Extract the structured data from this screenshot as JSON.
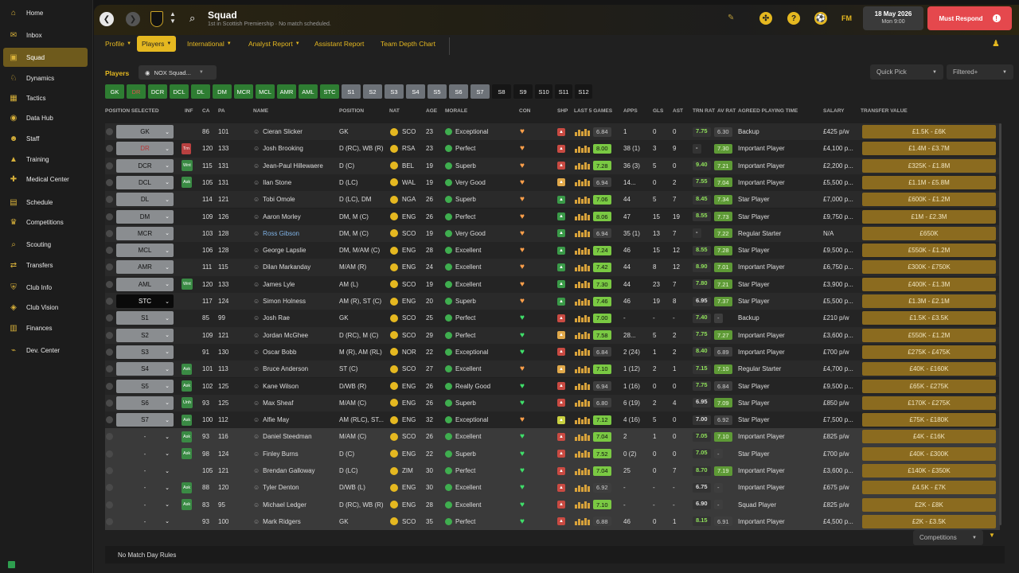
{
  "sidebar": {
    "items": [
      {
        "label": "Home",
        "icon": "home-icon",
        "glyph": "⌂"
      },
      {
        "label": "Inbox",
        "icon": "inbox-icon",
        "glyph": "✉"
      },
      {
        "label": "Squad",
        "icon": "squad-icon",
        "glyph": "▣",
        "active": true
      },
      {
        "label": "Dynamics",
        "icon": "dynamics-icon",
        "glyph": "♘"
      },
      {
        "label": "Tactics",
        "icon": "tactics-icon",
        "glyph": "▦"
      },
      {
        "label": "Data Hub",
        "icon": "data-hub-icon",
        "glyph": "◉"
      },
      {
        "label": "Staff",
        "icon": "staff-icon",
        "glyph": "☻"
      },
      {
        "label": "Training",
        "icon": "training-icon",
        "glyph": "▲"
      },
      {
        "label": "Medical Center",
        "icon": "medical-icon",
        "glyph": "✚"
      },
      {
        "label": "Schedule",
        "icon": "schedule-icon",
        "glyph": "▤"
      },
      {
        "label": "Competitions",
        "icon": "trophy-icon",
        "glyph": "♛"
      },
      {
        "label": "Scouting",
        "icon": "scouting-icon",
        "glyph": "⌕"
      },
      {
        "label": "Transfers",
        "icon": "transfers-icon",
        "glyph": "⇄"
      },
      {
        "label": "Club Info",
        "icon": "club-info-icon",
        "glyph": "⛨"
      },
      {
        "label": "Club Vision",
        "icon": "club-vision-icon",
        "glyph": "◈"
      },
      {
        "label": "Finances",
        "icon": "finances-icon",
        "glyph": "▥"
      },
      {
        "label": "Dev. Center",
        "icon": "dev-center-icon",
        "glyph": "⌁"
      }
    ]
  },
  "header": {
    "title": "Squad",
    "subtitle": "1st in Scottish Premiership · No match scheduled.",
    "date": "18 May 2026",
    "time": "Mon 9:00",
    "fm_label": "FM",
    "must_respond": "Must Respond"
  },
  "tabs": [
    {
      "label": "Profile",
      "caret": true
    },
    {
      "label": "Players",
      "caret": true,
      "active": true
    },
    {
      "label": "International",
      "caret": true
    },
    {
      "label": "Analyst Report",
      "caret": true
    },
    {
      "label": "Assistant Report",
      "caret": false
    },
    {
      "label": "Team Depth Chart",
      "caret": false
    }
  ],
  "players_label": "Players",
  "view_select": "NOX Squad...",
  "quick_pick": "Quick Pick",
  "filtered": "Filtered+",
  "position_filters": [
    {
      "label": "GK",
      "style": "g"
    },
    {
      "label": "DR",
      "style": "g-red"
    },
    {
      "label": "DCR",
      "style": "g"
    },
    {
      "label": "DCL",
      "style": "g"
    },
    {
      "label": "DL",
      "style": "g"
    },
    {
      "label": "DM",
      "style": "g"
    },
    {
      "label": "MCR",
      "style": "g"
    },
    {
      "label": "MCL",
      "style": "g"
    },
    {
      "label": "AMR",
      "style": "g"
    },
    {
      "label": "AML",
      "style": "g"
    },
    {
      "label": "STC",
      "style": "g"
    },
    {
      "label": "S1",
      "style": "gr"
    },
    {
      "label": "S2",
      "style": "gr"
    },
    {
      "label": "S3",
      "style": "gr"
    },
    {
      "label": "S4",
      "style": "gr"
    },
    {
      "label": "S5",
      "style": "gr"
    },
    {
      "label": "S6",
      "style": "gr"
    },
    {
      "label": "S7",
      "style": "gr"
    },
    {
      "label": "S8",
      "style": "dk"
    },
    {
      "label": "S9",
      "style": "dk"
    },
    {
      "label": "S10",
      "style": "dk"
    },
    {
      "label": "S11",
      "style": "dk"
    },
    {
      "label": "S12",
      "style": "dk"
    }
  ],
  "columns": {
    "position_selected": "POSITION SELECTED",
    "inf": "INF",
    "ca": "CA",
    "pa": "PA",
    "name": "NAME",
    "position": "POSITION",
    "nat": "NAT",
    "age": "AGE",
    "morale": "MORALE",
    "con": "CON",
    "shp": "SHP",
    "last5": "LAST 5 GAMES",
    "apps": "APPS",
    "gls": "GLS",
    "ast": "AST",
    "trn_rat": "TRN RAT",
    "av_rat": "AV RAT",
    "agreed": "AGREED PLAYING TIME",
    "salary": "SALARY",
    "transfer_value": "TRANSFER VALUE"
  },
  "players": [
    {
      "sel": "GK",
      "inf": "",
      "ca": "86",
      "pa": "101",
      "name": "Cieran Slicker",
      "pos": "GK",
      "nat": "SCO",
      "age": "23",
      "morale": "Exceptional",
      "l5": "6.84",
      "apps": "1",
      "gls": "0",
      "ast": "0",
      "trn": "7.75",
      "av": "6.30",
      "agreed": "Backup",
      "salary": "£425 p/w",
      "tv": "£1.5K - £6K"
    },
    {
      "sel": "DR",
      "inf": "Trn",
      "ca": "120",
      "pa": "133",
      "name": "Josh Brooking",
      "pos": "D (RC), WB (R)",
      "nat": "RSA",
      "age": "23",
      "morale": "Perfect",
      "l5": "8.00",
      "apps": "38 (1)",
      "gls": "3",
      "ast": "9",
      "trn": "-",
      "av": "7.30",
      "agreed": "Important Player",
      "salary": "£4,100 p...",
      "tv": "£1.4M - £3.7M"
    },
    {
      "sel": "DCR",
      "inf": "Wnt",
      "ca": "115",
      "pa": "131",
      "name": "Jean-Paul Hillewaere",
      "pos": "D (C)",
      "nat": "BEL",
      "age": "19",
      "morale": "Superb",
      "l5": "7.28",
      "apps": "36 (3)",
      "gls": "5",
      "ast": "0",
      "trn": "9.40",
      "av": "7.21",
      "agreed": "Important Player",
      "salary": "£2,200 p...",
      "tv": "£325K - £1.8M"
    },
    {
      "sel": "DCL",
      "inf": "Ask",
      "ca": "105",
      "pa": "131",
      "name": "Ilan Stone",
      "pos": "D (LC)",
      "nat": "WAL",
      "age": "19",
      "morale": "Very Good",
      "l5": "6.94",
      "apps": "14...",
      "gls": "0",
      "ast": "2",
      "trn": "7.55",
      "av": "7.04",
      "agreed": "Important Player",
      "salary": "£5,500 p...",
      "tv": "£1.1M - £5.8M"
    },
    {
      "sel": "DL",
      "inf": "",
      "ca": "114",
      "pa": "121",
      "name": "Tobi Omole",
      "pos": "D (LC), DM",
      "nat": "NGA",
      "age": "26",
      "morale": "Superb",
      "l5": "7.06",
      "apps": "44",
      "gls": "5",
      "ast": "7",
      "trn": "8.45",
      "av": "7.34",
      "agreed": "Star Player",
      "salary": "£7,000 p...",
      "tv": "£600K - £1.2M"
    },
    {
      "sel": "DM",
      "inf": "",
      "ca": "109",
      "pa": "126",
      "name": "Aaron Morley",
      "pos": "DM, M (C)",
      "nat": "ENG",
      "age": "26",
      "morale": "Perfect",
      "l5": "8.06",
      "apps": "47",
      "gls": "15",
      "ast": "19",
      "trn": "8.55",
      "av": "7.73",
      "agreed": "Star Player",
      "salary": "£9,750 p...",
      "tv": "£1M - £2.3M"
    },
    {
      "sel": "MCR",
      "inf": "",
      "ca": "103",
      "pa": "128",
      "name": "Ross Gibson",
      "pos": "DM, M (C)",
      "nat": "SCO",
      "age": "19",
      "morale": "Very Good",
      "l5": "6.94",
      "apps": "35 (1)",
      "gls": "13",
      "ast": "7",
      "trn": "-",
      "av": "7.22",
      "agreed": "Regular Starter",
      "salary": "N/A",
      "tv": "£650K"
    },
    {
      "sel": "MCL",
      "inf": "",
      "ca": "106",
      "pa": "128",
      "name": "George Lapslie",
      "pos": "DM, M/AM (C)",
      "nat": "ENG",
      "age": "28",
      "morale": "Excellent",
      "l5": "7.24",
      "apps": "46",
      "gls": "15",
      "ast": "12",
      "trn": "8.55",
      "av": "7.28",
      "agreed": "Star Player",
      "salary": "£9,500 p...",
      "tv": "£550K - £1.2M"
    },
    {
      "sel": "AMR",
      "inf": "",
      "ca": "111",
      "pa": "115",
      "name": "Dilan Markanday",
      "pos": "M/AM (R)",
      "nat": "ENG",
      "age": "24",
      "morale": "Excellent",
      "l5": "7.42",
      "apps": "44",
      "gls": "8",
      "ast": "12",
      "trn": "8.90",
      "av": "7.01",
      "agreed": "Important Player",
      "salary": "£6,750 p...",
      "tv": "£300K - £750K"
    },
    {
      "sel": "AML",
      "inf": "Wnt",
      "ca": "120",
      "pa": "133",
      "name": "James Lyle",
      "pos": "AM (L)",
      "nat": "SCO",
      "age": "19",
      "morale": "Excellent",
      "l5": "7.30",
      "apps": "44",
      "gls": "23",
      "ast": "7",
      "trn": "7.80",
      "av": "7.21",
      "agreed": "Star Player",
      "salary": "£3,900 p...",
      "tv": "£400K - £1.3M"
    },
    {
      "sel": "STC",
      "inf": "",
      "ca": "117",
      "pa": "124",
      "name": "Simon Holness",
      "pos": "AM (R), ST (C)",
      "nat": "ENG",
      "age": "20",
      "morale": "Superb",
      "l5": "7.46",
      "apps": "46",
      "gls": "19",
      "ast": "8",
      "trn": "6.95",
      "av": "7.37",
      "agreed": "Star Player",
      "salary": "£5,500 p...",
      "tv": "£1.3M - £2.1M"
    },
    {
      "sel": "S1",
      "inf": "",
      "ca": "85",
      "pa": "99",
      "name": "Josh Rae",
      "pos": "GK",
      "nat": "SCO",
      "age": "25",
      "morale": "Perfect",
      "l5": "7.00",
      "apps": "-",
      "gls": "-",
      "ast": "-",
      "trn": "7.40",
      "av": "-",
      "agreed": "Backup",
      "salary": "£210 p/w",
      "tv": "£1.5K - £3.5K"
    },
    {
      "sel": "S2",
      "inf": "",
      "ca": "109",
      "pa": "121",
      "name": "Jordan McGhee",
      "pos": "D (RC), M (C)",
      "nat": "SCO",
      "age": "29",
      "morale": "Perfect",
      "l5": "7.58",
      "apps": "28...",
      "gls": "5",
      "ast": "2",
      "trn": "7.75",
      "av": "7.27",
      "agreed": "Important Player",
      "salary": "£3,600 p...",
      "tv": "£550K - £1.2M"
    },
    {
      "sel": "S3",
      "inf": "",
      "ca": "91",
      "pa": "130",
      "name": "Oscar Bobb",
      "pos": "M (R), AM (RL)",
      "nat": "NOR",
      "age": "22",
      "morale": "Exceptional",
      "l5": "6.84",
      "apps": "2 (24)",
      "gls": "1",
      "ast": "2",
      "trn": "8.40",
      "av": "6.89",
      "agreed": "Important Player",
      "salary": "£700 p/w",
      "tv": "£275K - £475K"
    },
    {
      "sel": "S4",
      "inf": "Ask",
      "ca": "101",
      "pa": "113",
      "name": "Bruce Anderson",
      "pos": "ST (C)",
      "nat": "SCO",
      "age": "27",
      "morale": "Excellent",
      "l5": "7.10",
      "apps": "1 (12)",
      "gls": "2",
      "ast": "1",
      "trn": "7.15",
      "av": "7.10",
      "agreed": "Regular Starter",
      "salary": "£4,700 p...",
      "tv": "£40K - £160K"
    },
    {
      "sel": "S5",
      "inf": "Ask",
      "ca": "102",
      "pa": "125",
      "name": "Kane Wilson",
      "pos": "D/WB (R)",
      "nat": "ENG",
      "age": "26",
      "morale": "Really Good",
      "l5": "6.94",
      "apps": "1 (16)",
      "gls": "0",
      "ast": "0",
      "trn": "7.75",
      "av": "6.84",
      "agreed": "Star Player",
      "salary": "£9,500 p...",
      "tv": "£65K - £275K"
    },
    {
      "sel": "S6",
      "inf": "Unh",
      "ca": "93",
      "pa": "125",
      "name": "Max Sheaf",
      "pos": "M/AM (C)",
      "nat": "ENG",
      "age": "26",
      "morale": "Superb",
      "l5": "6.80",
      "apps": "6 (19)",
      "gls": "2",
      "ast": "4",
      "trn": "6.95",
      "av": "7.09",
      "agreed": "Star Player",
      "salary": "£850 p/w",
      "tv": "£170K - £275K"
    },
    {
      "sel": "S7",
      "inf": "Ask",
      "ca": "100",
      "pa": "112",
      "name": "Alfie May",
      "pos": "AM (RLC), ST...",
      "nat": "ENG",
      "age": "32",
      "morale": "Exceptional",
      "l5": "7.12",
      "apps": "4 (16)",
      "gls": "5",
      "ast": "0",
      "trn": "7.00",
      "av": "6.92",
      "agreed": "Star Player",
      "salary": "£7,500 p...",
      "tv": "£75K - £180K"
    },
    {
      "sel": "-",
      "inf": "Ask",
      "ca": "93",
      "pa": "116",
      "name": "Daniel Steedman",
      "pos": "M/AM (C)",
      "nat": "SCO",
      "age": "26",
      "morale": "Excellent",
      "l5": "7.04",
      "apps": "2",
      "gls": "1",
      "ast": "0",
      "trn": "7.05",
      "av": "7.10",
      "agreed": "Important Player",
      "salary": "£825 p/w",
      "tv": "£4K - £16K"
    },
    {
      "sel": "-",
      "inf": "Ask",
      "ca": "98",
      "pa": "124",
      "name": "Finley Burns",
      "pos": "D (C)",
      "nat": "ENG",
      "age": "22",
      "morale": "Superb",
      "l5": "7.52",
      "apps": "0 (2)",
      "gls": "0",
      "ast": "0",
      "trn": "7.05",
      "av": "-",
      "agreed": "Star Player",
      "salary": "£700 p/w",
      "tv": "£40K - £300K"
    },
    {
      "sel": "-",
      "inf": "",
      "ca": "105",
      "pa": "121",
      "name": "Brendan Galloway",
      "pos": "D (LC)",
      "nat": "ZIM",
      "age": "30",
      "morale": "Perfect",
      "l5": "7.04",
      "apps": "25",
      "gls": "0",
      "ast": "7",
      "trn": "8.70",
      "av": "7.19",
      "agreed": "Important Player",
      "salary": "£3,600 p...",
      "tv": "£140K - £350K"
    },
    {
      "sel": "-",
      "inf": "Ask",
      "ca": "88",
      "pa": "120",
      "name": "Tyler Denton",
      "pos": "D/WB (L)",
      "nat": "ENG",
      "age": "30",
      "morale": "Excellent",
      "l5": "6.92",
      "apps": "-",
      "gls": "-",
      "ast": "-",
      "trn": "6.75",
      "av": "-",
      "agreed": "Important Player",
      "salary": "£675 p/w",
      "tv": "£4.5K - £7K"
    },
    {
      "sel": "-",
      "inf": "Ask",
      "ca": "83",
      "pa": "95",
      "name": "Michael Ledger",
      "pos": "D (RC), WB (R)",
      "nat": "ENG",
      "age": "28",
      "morale": "Excellent",
      "l5": "7.10",
      "apps": "-",
      "gls": "-",
      "ast": "-",
      "trn": "6.90",
      "av": "-",
      "agreed": "Squad Player",
      "salary": "£825 p/w",
      "tv": "£2K - £8K"
    },
    {
      "sel": "-",
      "inf": "",
      "ca": "93",
      "pa": "100",
      "name": "Mark Ridgers",
      "pos": "GK",
      "nat": "SCO",
      "age": "35",
      "morale": "Perfect",
      "l5": "6.88",
      "apps": "46",
      "gls": "0",
      "ast": "1",
      "trn": "8.15",
      "av": "6.91",
      "agreed": "Important Player",
      "salary": "£4,500 p...",
      "tv": "£2K - £3.5K"
    }
  ],
  "competitions": "Competitions",
  "no_match_rules": "No Match Day Rules",
  "colors": {
    "accent": "#e5b820",
    "green": "#2e7d32",
    "respond": "#e5484d"
  }
}
